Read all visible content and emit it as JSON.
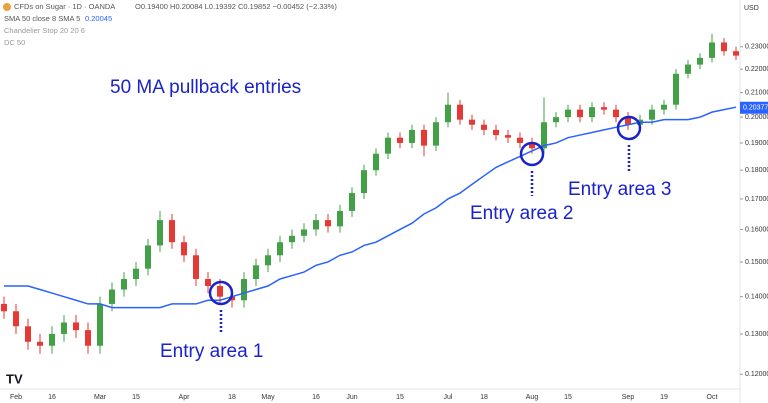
{
  "chart_data": {
    "type": "candlestick",
    "header": {
      "symbol": "CFDs on Sugar · 1D · OANDA",
      "ohlc": "O0.19400 H0.20084 L0.19392 C0.19852 −0.00452 (−2.33%)",
      "sma": "SMA 50 close 8 SMA 5",
      "sma_value": "0.20045",
      "chandelier": "Chandelier Stop 20 20 6",
      "dc": "DC 50"
    },
    "currency": "USD",
    "title": "50 MA pullback entries",
    "annotations": [
      "Entry area 1",
      "Entry area 2",
      "Entry area 3"
    ],
    "categories": [
      null,
      "Feb",
      null,
      null,
      "16",
      null,
      null,
      null,
      "Mar",
      null,
      null,
      "15",
      null,
      null,
      null,
      "Apr",
      null,
      null,
      null,
      "18",
      null,
      null,
      "May",
      null,
      null,
      null,
      "16",
      null,
      null,
      "Jun",
      null,
      null,
      null,
      "15",
      null,
      null,
      null,
      "Jul",
      null,
      null,
      "18",
      null,
      null,
      null,
      "Aug",
      null,
      null,
      "15",
      null,
      null,
      null,
      null,
      "Sep",
      null,
      null,
      "19",
      null,
      null,
      null,
      "Oct",
      null,
      null
    ],
    "open": [
      0.138,
      0.136,
      0.132,
      0.128,
      0.127,
      0.13,
      0.133,
      0.131,
      0.127,
      0.138,
      0.142,
      0.145,
      0.148,
      0.155,
      0.163,
      0.156,
      0.152,
      0.145,
      0.143,
      0.14,
      0.139,
      0.145,
      0.149,
      0.152,
      0.156,
      0.158,
      0.16,
      0.163,
      0.161,
      0.166,
      0.172,
      0.18,
      0.186,
      0.192,
      0.19,
      0.195,
      0.189,
      0.198,
      0.205,
      0.199,
      0.197,
      0.195,
      0.193,
      0.192,
      0.19,
      0.188,
      0.198,
      0.2,
      0.203,
      0.2,
      0.204,
      0.203,
      0.2,
      0.197,
      0.199,
      0.203,
      0.205,
      0.218,
      0.222,
      0.225,
      0.232,
      0.228
    ],
    "high": [
      0.14,
      0.138,
      0.134,
      0.13,
      0.132,
      0.135,
      0.135,
      0.133,
      0.14,
      0.144,
      0.147,
      0.15,
      0.157,
      0.166,
      0.165,
      0.158,
      0.154,
      0.147,
      0.145,
      0.142,
      0.147,
      0.151,
      0.154,
      0.158,
      0.16,
      0.162,
      0.165,
      0.165,
      0.168,
      0.174,
      0.182,
      0.188,
      0.194,
      0.194,
      0.197,
      0.197,
      0.2,
      0.21,
      0.207,
      0.201,
      0.199,
      0.197,
      0.195,
      0.194,
      0.192,
      0.208,
      0.202,
      0.205,
      0.205,
      0.206,
      0.206,
      0.205,
      0.202,
      0.201,
      0.205,
      0.207,
      0.22,
      0.224,
      0.227,
      0.236,
      0.234,
      0.23
    ],
    "low": [
      0.134,
      0.13,
      0.126,
      0.125,
      0.125,
      0.128,
      0.129,
      0.125,
      0.125,
      0.136,
      0.14,
      0.143,
      0.146,
      0.153,
      0.154,
      0.15,
      0.143,
      0.141,
      0.138,
      0.137,
      0.137,
      0.143,
      0.147,
      0.15,
      0.154,
      0.156,
      0.158,
      0.159,
      0.159,
      0.164,
      0.17,
      0.178,
      0.184,
      0.188,
      0.188,
      0.185,
      0.187,
      0.196,
      0.197,
      0.195,
      0.193,
      0.191,
      0.19,
      0.188,
      0.186,
      0.186,
      0.196,
      0.198,
      0.198,
      0.198,
      0.201,
      0.198,
      0.195,
      0.195,
      0.197,
      0.201,
      0.203,
      0.216,
      0.22,
      0.223,
      0.226,
      0.224
    ],
    "close": [
      0.136,
      0.132,
      0.128,
      0.127,
      0.13,
      0.133,
      0.131,
      0.127,
      0.138,
      0.142,
      0.145,
      0.148,
      0.155,
      0.163,
      0.156,
      0.152,
      0.145,
      0.143,
      0.14,
      0.139,
      0.145,
      0.149,
      0.152,
      0.156,
      0.158,
      0.16,
      0.163,
      0.161,
      0.166,
      0.172,
      0.18,
      0.186,
      0.192,
      0.19,
      0.195,
      0.189,
      0.198,
      0.205,
      0.199,
      0.197,
      0.195,
      0.193,
      0.192,
      0.19,
      0.188,
      0.198,
      0.2,
      0.203,
      0.2,
      0.204,
      0.203,
      0.2,
      0.197,
      0.199,
      0.203,
      0.205,
      0.218,
      0.222,
      0.225,
      0.232,
      0.228,
      0.226
    ],
    "up_color": "#43a047",
    "down_color": "#e53935",
    "ma": {
      "color": "#2962ff",
      "last_value": 0.20377,
      "values": [
        0.143,
        0.143,
        0.143,
        0.142,
        0.141,
        0.14,
        0.139,
        0.138,
        0.138,
        0.137,
        0.137,
        0.137,
        0.137,
        0.137,
        0.138,
        0.138,
        0.138,
        0.139,
        0.139,
        0.14,
        0.141,
        0.142,
        0.143,
        0.145,
        0.146,
        0.147,
        0.149,
        0.15,
        0.152,
        0.153,
        0.155,
        0.156,
        0.158,
        0.16,
        0.162,
        0.165,
        0.167,
        0.17,
        0.172,
        0.175,
        0.178,
        0.181,
        0.183,
        0.185,
        0.187,
        0.189,
        0.19,
        0.192,
        0.193,
        0.194,
        0.195,
        0.196,
        0.197,
        0.198,
        0.198,
        0.199,
        0.199,
        0.199,
        0.2,
        0.202,
        0.203,
        0.204
      ]
    },
    "log_scale": true,
    "ylim": [
      0.117,
      0.245
    ],
    "yticks": [
      {
        "value": 0.12,
        "label": "0.12000"
      },
      {
        "value": 0.13,
        "label": "0.13000"
      },
      {
        "value": 0.14,
        "label": "0.14000"
      },
      {
        "value": 0.15,
        "label": "0.15000"
      },
      {
        "value": 0.16,
        "label": "0.16000"
      },
      {
        "value": 0.17,
        "label": "0.17000"
      },
      {
        "value": 0.18,
        "label": "0.18000"
      },
      {
        "value": 0.19,
        "label": "0.19000"
      },
      {
        "value": 0.2,
        "label": "0.20000"
      },
      {
        "value": 0.21,
        "label": "0.21000"
      },
      {
        "value": 0.22,
        "label": "0.22000"
      },
      {
        "value": 0.23,
        "label": "0.23000"
      }
    ]
  }
}
